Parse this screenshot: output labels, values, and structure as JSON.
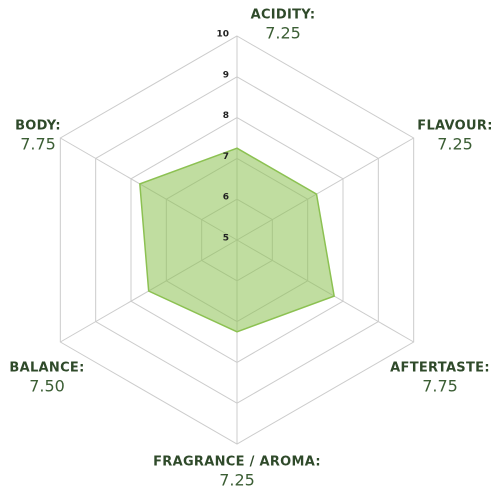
{
  "chart_data": {
    "type": "radar",
    "categories": [
      "ACIDITY:",
      "FLAVOUR:",
      "AFTERTASTE:",
      "FRAGRANCE / AROMA:",
      "BALANCE:",
      "BODY:"
    ],
    "values": [
      7.25,
      7.25,
      7.75,
      7.25,
      7.5,
      7.75
    ],
    "value_labels": [
      "7.25",
      "7.25",
      "7.75",
      "7.25",
      "7.50",
      "7.75"
    ],
    "rlim": [
      5,
      10
    ],
    "rticks": [
      5,
      6,
      7,
      8,
      9,
      10
    ],
    "color": "#8cc152",
    "grid": true
  }
}
